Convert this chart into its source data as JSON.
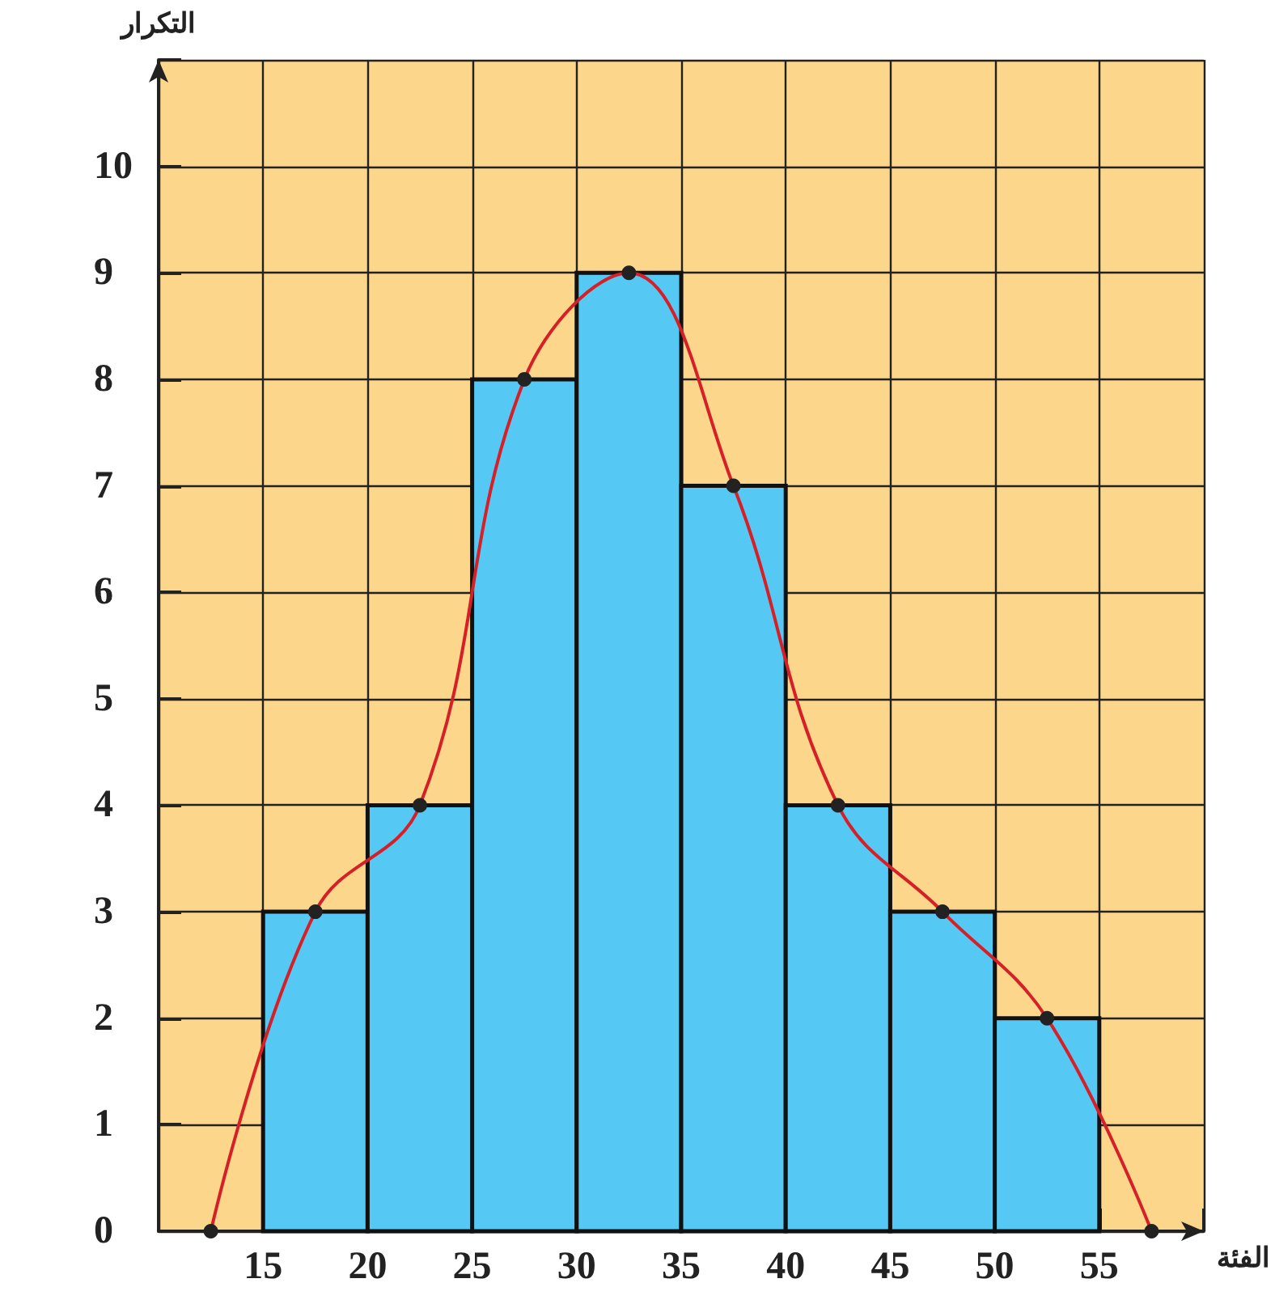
{
  "chart_data": {
    "type": "histogram",
    "xlabel": "الفئة",
    "ylabel": "التكرار",
    "bins": [
      15,
      20,
      25,
      30,
      35,
      40,
      45,
      50,
      55
    ],
    "series": [
      {
        "type": "histogram",
        "color": "#56c8f4",
        "values": [
          3,
          4,
          8,
          9,
          7,
          4,
          3,
          2
        ]
      },
      {
        "type": "line",
        "color": "#d62027",
        "marker": "circle",
        "x": [
          12.5,
          17.5,
          22.5,
          27.5,
          32.5,
          37.5,
          42.5,
          47.5,
          52.5,
          57.5
        ],
        "values": [
          0,
          3,
          4,
          8,
          9,
          7,
          4,
          3,
          2,
          0
        ]
      }
    ],
    "xlim": [
      10,
      60
    ],
    "xticks": [
      15,
      20,
      25,
      30,
      35,
      40,
      45,
      50,
      55
    ],
    "ylim": [
      0,
      11
    ],
    "yticks": [
      0,
      1,
      2,
      3,
      4,
      5,
      6,
      7,
      8,
      9,
      10
    ],
    "grid": true
  }
}
